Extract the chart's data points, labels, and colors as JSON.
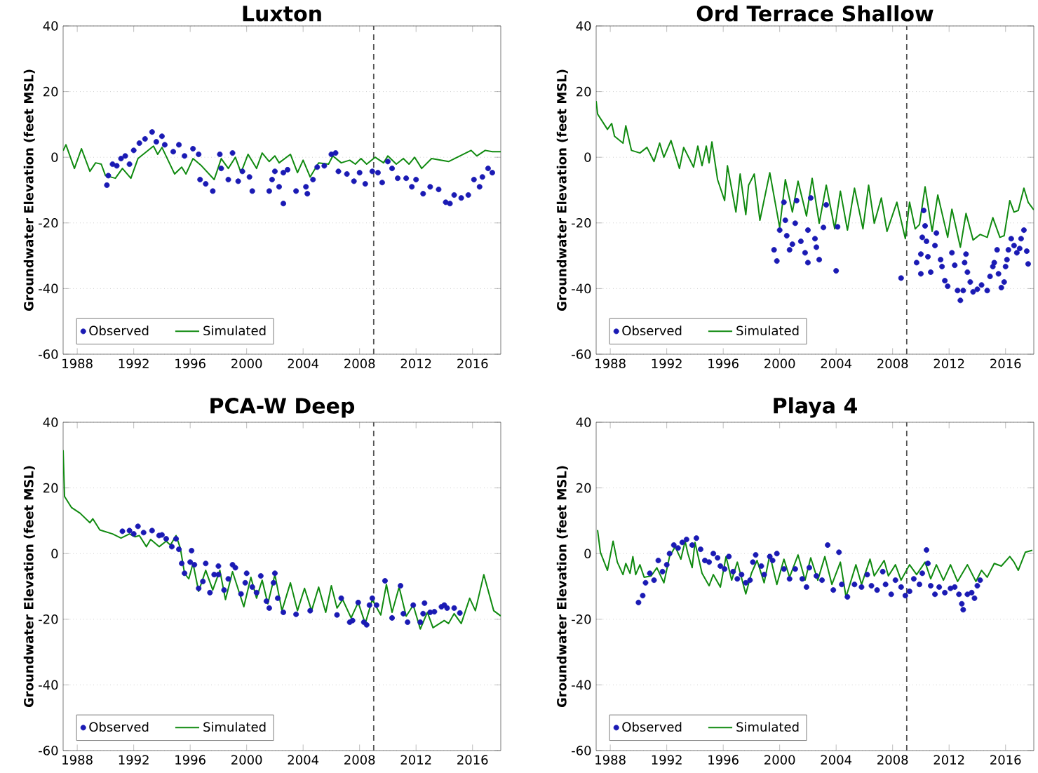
{
  "chart_data": [
    {
      "type": "line",
      "title": "Luxton",
      "ylabel": "Groundwater Elevation (feet MSL)",
      "xlim": [
        1987,
        2018
      ],
      "ylim": [
        -60,
        40
      ],
      "xticks": [
        1988,
        1992,
        1996,
        2000,
        2004,
        2008,
        2012,
        2016
      ],
      "yticks": [
        -60,
        -40,
        -20,
        0,
        20,
        40
      ],
      "grid": "y",
      "legend": "bottom left",
      "ref_lines": [
        {
          "axis": "x",
          "value": 2009,
          "color": "#555555",
          "line_style": "dashed"
        }
      ],
      "series": [
        {
          "name": "Observed",
          "type": "scatter",
          "color": "#1a1ab4",
          "x": [
            1990.1,
            1990.2,
            1990.5,
            1990.8,
            1991.1,
            1991.4,
            1991.7,
            1992.0,
            1992.4,
            1992.8,
            1993.3,
            1993.6,
            1994.0,
            1994.2,
            1994.8,
            1995.2,
            1995.6,
            1996.2,
            1996.6,
            1996.7,
            1997.1,
            1997.6,
            1998.1,
            1998.2,
            1998.7,
            1999.0,
            1999.4,
            1999.7,
            2000.2,
            2000.4,
            2001.6,
            2001.8,
            2002.0,
            2002.3,
            2002.6,
            2002.6,
            2002.9,
            2003.5,
            2004.3,
            2004.2,
            2004.7,
            2005.0,
            2005.5,
            2006.0,
            2006.3,
            2006.5,
            2007.1,
            2007.6,
            2008.0,
            2008.4,
            2008.9,
            2009.3,
            2009.6,
            2010.0,
            2010.3,
            2010.7,
            2011.3,
            2011.7,
            2012.0,
            2012.5,
            2013.0,
            2013.6,
            2014.1,
            2014.4,
            2014.7,
            2015.2,
            2015.7,
            2016.1,
            2016.5,
            2016.7,
            2017.1,
            2017.4
          ],
          "values": [
            -8.5,
            -5.6,
            -2.1,
            -2.6,
            -0.4,
            0.4,
            -2.1,
            2.1,
            4.3,
            5.6,
            7.7,
            4.7,
            6.4,
            3.8,
            1.7,
            3.8,
            0.4,
            2.6,
            0.9,
            -6.8,
            -8.1,
            -10.3,
            0.9,
            -3.4,
            -6.8,
            1.3,
            -7.3,
            -4.3,
            -6.0,
            -10.3,
            -10.3,
            -6.8,
            -4.3,
            -9.0,
            -14.1,
            -4.7,
            -3.8,
            -10.3,
            -11.1,
            -9.0,
            -6.8,
            -3.0,
            -2.6,
            0.9,
            1.3,
            -4.3,
            -5.1,
            -7.3,
            -4.7,
            -8.1,
            -4.3,
            -4.7,
            -7.7,
            -1.3,
            -3.4,
            -6.4,
            -6.4,
            -9.0,
            -6.8,
            -11.1,
            -9.0,
            -9.8,
            -13.7,
            -14.1,
            -11.5,
            -12.4,
            -11.5,
            -6.8,
            -9.0,
            -6.0,
            -3.4,
            -4.7
          ]
        },
        {
          "name": "Simulated",
          "type": "line",
          "color": "#108a10",
          "x": [
            1987.0,
            1987.2,
            1987.8,
            1988.3,
            1988.9,
            1989.3,
            1989.7,
            1990.0,
            1990.7,
            1991.2,
            1991.8,
            1992.3,
            1993.4,
            1993.7,
            1994.0,
            1994.9,
            1995.4,
            1995.7,
            1996.2,
            1996.8,
            1997.7,
            1998.2,
            1998.7,
            1999.2,
            1999.6,
            2000.1,
            2000.7,
            2001.1,
            2001.6,
            2002.0,
            2002.3,
            2003.1,
            2003.6,
            2004.0,
            2004.5,
            2005.1,
            2005.8,
            2006.1,
            2006.7,
            2007.3,
            2007.7,
            2008.1,
            2008.5,
            2009.1,
            2009.7,
            2010.0,
            2010.6,
            2011.1,
            2011.5,
            2011.9,
            2012.4,
            2013.1,
            2014.3,
            2015.1,
            2015.9,
            2016.3,
            2016.9,
            2017.4,
            2018.0
          ],
          "values": [
            2.0,
            3.8,
            -3.4,
            2.6,
            -4.3,
            -1.7,
            -2.1,
            -5.6,
            -6.4,
            -3.4,
            -6.4,
            -0.4,
            3.4,
            0.9,
            3.0,
            -5.1,
            -3.0,
            -5.1,
            -0.4,
            -2.6,
            -6.8,
            -0.4,
            -3.4,
            0.0,
            -4.7,
            0.9,
            -3.4,
            1.3,
            -1.3,
            0.4,
            -1.7,
            0.9,
            -4.7,
            -0.9,
            -6.0,
            -1.7,
            -2.1,
            0.4,
            -1.7,
            -0.9,
            -2.1,
            -0.4,
            -2.1,
            0.0,
            -1.7,
            0.4,
            -2.1,
            -0.4,
            -2.1,
            0.0,
            -3.4,
            -0.4,
            -1.3,
            0.4,
            2.1,
            0.4,
            2.1,
            1.7,
            1.7
          ]
        }
      ]
    },
    {
      "type": "line",
      "title": "Ord Terrace Shallow",
      "ylabel": "Groundwater Elevation (feet MSL)",
      "xlim": [
        1987,
        2018
      ],
      "ylim": [
        -60,
        40
      ],
      "xticks": [
        1988,
        1992,
        1996,
        2000,
        2004,
        2008,
        2012,
        2016
      ],
      "yticks": [
        -60,
        -40,
        -20,
        0,
        20,
        40
      ],
      "grid": "y",
      "legend": "bottom left",
      "ref_lines": [
        {
          "axis": "x",
          "value": 2009,
          "color": "#555555",
          "line_style": "dashed"
        }
      ],
      "series": [
        {
          "name": "Observed",
          "type": "scatter",
          "color": "#1a1ab4",
          "x": [
            1999.6,
            1999.8,
            2000.0,
            2000.3,
            2000.4,
            2000.5,
            2000.7,
            2000.9,
            2001.1,
            2001.2,
            2001.5,
            2001.8,
            2002.0,
            2002.0,
            2002.2,
            2002.5,
            2002.6,
            2002.8,
            2003.1,
            2003.3,
            2004.1,
            2004.0,
            2008.6,
            2009.7,
            2010.0,
            2010.0,
            2010.1,
            2010.2,
            2010.3,
            2010.4,
            2010.5,
            2010.7,
            2011.0,
            2011.1,
            2011.4,
            2011.5,
            2011.7,
            2011.9,
            2012.2,
            2012.4,
            2012.6,
            2012.8,
            2013.0,
            2013.1,
            2013.2,
            2013.3,
            2013.5,
            2013.7,
            2014.0,
            2014.3,
            2014.7,
            2014.9,
            2015.1,
            2015.2,
            2015.4,
            2015.5,
            2015.7,
            2015.9,
            2016.0,
            2016.1,
            2016.2,
            2016.4,
            2016.6,
            2016.8,
            2017.0,
            2017.1,
            2017.3,
            2017.5,
            2017.6
          ],
          "values": [
            -28.2,
            -31.6,
            -22.2,
            -13.7,
            -19.2,
            -23.9,
            -28.2,
            -26.5,
            -20.1,
            -13.2,
            -25.6,
            -29.1,
            -32.1,
            -22.2,
            -12.4,
            -24.8,
            -27.4,
            -31.2,
            -21.4,
            -14.5,
            -21.2,
            -34.6,
            -36.8,
            -32.1,
            -35.5,
            -29.5,
            -24.4,
            -16.2,
            -20.9,
            -25.6,
            -30.3,
            -35.0,
            -26.9,
            -23.1,
            -31.2,
            -33.3,
            -37.6,
            -39.3,
            -29.1,
            -32.9,
            -40.6,
            -43.6,
            -40.6,
            -32.1,
            -29.5,
            -35.0,
            -38.0,
            -41.0,
            -40.2,
            -38.9,
            -40.6,
            -36.3,
            -33.3,
            -32.1,
            -28.2,
            -35.5,
            -39.7,
            -38.0,
            -33.3,
            -31.2,
            -28.2,
            -24.8,
            -26.9,
            -29.1,
            -27.8,
            -24.8,
            -22.2,
            -28.6,
            -32.5
          ]
        },
        {
          "name": "Simulated",
          "type": "line",
          "color": "#108a10",
          "x": [
            1987.0,
            1987.1,
            1987.8,
            1988.1,
            1988.3,
            1988.9,
            1989.1,
            1989.5,
            1990.1,
            1990.6,
            1991.1,
            1991.5,
            1991.8,
            1992.3,
            1992.9,
            1993.2,
            1993.9,
            1994.2,
            1994.5,
            1994.8,
            1995.0,
            1995.2,
            1995.6,
            1996.1,
            1996.3,
            1996.9,
            1997.2,
            1997.6,
            1997.8,
            1998.2,
            1998.6,
            1999.3,
            2000.0,
            2000.4,
            2000.9,
            2001.3,
            2001.9,
            2002.3,
            2002.8,
            2003.3,
            2003.9,
            2004.3,
            2004.8,
            2005.3,
            2005.9,
            2006.3,
            2006.7,
            2007.2,
            2007.6,
            2008.3,
            2008.9,
            2009.2,
            2009.6,
            2009.9,
            2010.3,
            2010.8,
            2011.2,
            2011.9,
            2012.2,
            2012.8,
            2013.2,
            2013.7,
            2014.2,
            2014.7,
            2015.1,
            2015.6,
            2015.9,
            2016.3,
            2016.6,
            2016.9,
            2017.3,
            2017.6,
            2018.0
          ],
          "values": [
            17.1,
            13.2,
            8.5,
            10.3,
            6.4,
            4.3,
            9.6,
            2.1,
            1.3,
            3.0,
            -1.3,
            4.3,
            0.0,
            5.1,
            -3.4,
            3.0,
            -3.0,
            3.4,
            -2.6,
            3.4,
            -1.7,
            4.7,
            -6.8,
            -13.2,
            -2.6,
            -16.7,
            -5.1,
            -17.5,
            -8.5,
            -5.1,
            -19.2,
            -4.7,
            -21.4,
            -6.8,
            -16.7,
            -7.3,
            -17.9,
            -6.4,
            -20.1,
            -8.5,
            -21.8,
            -10.3,
            -22.2,
            -9.4,
            -21.8,
            -8.5,
            -20.1,
            -12.4,
            -22.6,
            -13.7,
            -24.8,
            -13.7,
            -21.8,
            -20.5,
            -9.0,
            -22.6,
            -11.5,
            -24.4,
            -15.8,
            -27.4,
            -17.1,
            -25.2,
            -23.5,
            -24.4,
            -18.4,
            -24.4,
            -23.9,
            -13.2,
            -16.7,
            -16.2,
            -9.4,
            -13.7,
            -16.0
          ]
        }
      ]
    },
    {
      "type": "line",
      "title": "PCA-W Deep",
      "ylabel": "Groundwater Elevation (feet MSL)",
      "xlim": [
        1987,
        2018
      ],
      "ylim": [
        -60,
        40
      ],
      "xticks": [
        1988,
        1992,
        1996,
        2000,
        2004,
        2008,
        2012,
        2016
      ],
      "yticks": [
        -60,
        -40,
        -20,
        0,
        20,
        40
      ],
      "grid": "y",
      "legend": "bottom left",
      "ref_lines": [
        {
          "axis": "x",
          "value": 2009,
          "color": "#555555",
          "line_style": "dashed"
        }
      ],
      "series": [
        {
          "name": "Observed",
          "type": "scatter",
          "color": "#1a1ab4",
          "x": [
            1991.2,
            1991.7,
            1992.0,
            1992.3,
            1992.7,
            1993.3,
            1993.8,
            1994.0,
            1994.3,
            1994.7,
            1995.0,
            1995.2,
            1995.4,
            1995.6,
            1996.0,
            1996.1,
            1996.3,
            1996.6,
            1996.9,
            1997.1,
            1997.4,
            1997.7,
            1998.0,
            1998.0,
            1998.4,
            1998.7,
            1999.0,
            1999.2,
            1999.6,
            1999.9,
            2000.0,
            2000.4,
            2000.7,
            2001.0,
            2001.4,
            2001.6,
            2001.9,
            2002.0,
            2002.2,
            2002.6,
            2003.5,
            2004.5,
            2006.4,
            2006.7,
            2007.3,
            2007.5,
            2007.9,
            2008.3,
            2008.5,
            2008.7,
            2008.9,
            2009.2,
            2009.8,
            2010.3,
            2010.9,
            2011.1,
            2011.4,
            2011.8,
            2012.3,
            2012.5,
            2012.6,
            2013.0,
            2013.3,
            2013.8,
            2014.0,
            2014.2,
            2014.7,
            2015.1
          ],
          "values": [
            6.8,
            7.0,
            6.0,
            8.3,
            6.4,
            7.0,
            5.5,
            5.7,
            4.5,
            2.1,
            4.5,
            1.3,
            -3.0,
            -6.0,
            -2.6,
            0.9,
            -3.4,
            -10.6,
            -8.5,
            -3.0,
            -11.9,
            -6.4,
            -6.4,
            -3.8,
            -11.1,
            -7.7,
            -3.4,
            -4.3,
            -12.3,
            -8.9,
            -6.0,
            -10.2,
            -11.9,
            -6.8,
            -14.5,
            -16.6,
            -8.9,
            -6.0,
            -13.6,
            -17.9,
            -18.5,
            -17.4,
            -18.7,
            -13.6,
            -20.9,
            -20.4,
            -14.9,
            -20.9,
            -21.7,
            -15.7,
            -13.6,
            -15.7,
            -8.3,
            -19.6,
            -9.8,
            -18.3,
            -20.9,
            -15.7,
            -20.9,
            -18.3,
            -15.1,
            -17.9,
            -17.7,
            -16.2,
            -15.7,
            -16.6,
            -16.6,
            -18.1
          ]
        },
        {
          "name": "Simulated",
          "type": "line",
          "color": "#108a10",
          "x": [
            1987.0,
            1987.1,
            1987.6,
            1988.2,
            1988.9,
            1989.1,
            1989.6,
            1990.5,
            1991.1,
            1991.7,
            1992.1,
            1992.4,
            1992.9,
            1993.2,
            1993.8,
            1994.3,
            1994.6,
            1995.0,
            1995.3,
            1995.6,
            1995.9,
            1996.2,
            1996.6,
            1997.1,
            1997.6,
            1998.1,
            1998.5,
            1999.0,
            1999.8,
            2000.3,
            2000.7,
            2001.1,
            2001.5,
            2002.0,
            2002.5,
            2003.1,
            2003.6,
            2004.1,
            2004.6,
            2005.1,
            2005.6,
            2006.0,
            2006.4,
            2006.8,
            2007.4,
            2007.9,
            2008.4,
            2008.9,
            2009.5,
            2009.9,
            2010.3,
            2010.8,
            2011.3,
            2011.8,
            2012.3,
            2012.8,
            2013.2,
            2014.0,
            2014.3,
            2014.7,
            2015.2,
            2015.8,
            2016.2,
            2016.8,
            2017.5,
            2018.0
          ],
          "values": [
            31.5,
            17.4,
            14.0,
            12.3,
            9.4,
            10.6,
            7.2,
            6.0,
            4.7,
            6.0,
            5.1,
            5.5,
            2.1,
            4.3,
            2.1,
            3.8,
            2.6,
            5.5,
            1.7,
            -6.0,
            -7.7,
            -3.0,
            -11.5,
            -5.1,
            -11.1,
            -5.1,
            -14.0,
            -5.5,
            -16.2,
            -7.2,
            -13.6,
            -8.1,
            -15.3,
            -6.4,
            -17.4,
            -8.9,
            -17.4,
            -10.6,
            -17.4,
            -10.2,
            -17.9,
            -9.8,
            -16.6,
            -14.0,
            -19.6,
            -14.9,
            -21.3,
            -14.0,
            -18.7,
            -9.4,
            -17.9,
            -10.2,
            -19.1,
            -15.7,
            -23.0,
            -17.9,
            -22.6,
            -20.4,
            -21.3,
            -18.3,
            -21.3,
            -13.6,
            -17.4,
            -6.4,
            -17.4,
            -19.0
          ]
        }
      ]
    },
    {
      "type": "line",
      "title": "Playa 4",
      "ylabel": "Groundwater Elevation (feet MSL)",
      "xlim": [
        1987,
        2018
      ],
      "ylim": [
        -60,
        40
      ],
      "xticks": [
        1988,
        1992,
        1996,
        2000,
        2004,
        2008,
        2012,
        2016
      ],
      "yticks": [
        -60,
        -40,
        -20,
        0,
        20,
        40
      ],
      "grid": "y",
      "legend": "bottom left",
      "ref_lines": [
        {
          "axis": "x",
          "value": 2009,
          "color": "#555555",
          "line_style": "dashed"
        }
      ],
      "series": [
        {
          "name": "Observed",
          "type": "scatter",
          "color": "#1a1ab4",
          "x": [
            1990.0,
            1990.3,
            1990.5,
            1990.8,
            1991.1,
            1991.4,
            1991.7,
            1992.0,
            1992.2,
            1992.5,
            1992.8,
            1993.1,
            1993.4,
            1993.8,
            1994.1,
            1994.4,
            1994.7,
            1995.0,
            1995.3,
            1995.6,
            1995.8,
            1996.1,
            1996.4,
            1996.7,
            1997.0,
            1997.3,
            1997.6,
            1997.9,
            1998.1,
            1998.3,
            1998.7,
            1998.9,
            1999.3,
            1999.5,
            1999.8,
            2000.3,
            2000.7,
            2001.1,
            2001.6,
            2001.9,
            2002.1,
            2002.6,
            2003.0,
            2003.4,
            2003.8,
            2004.2,
            2004.4,
            2004.8,
            2005.3,
            2005.8,
            2006.2,
            2006.5,
            2006.9,
            2007.3,
            2007.5,
            2007.9,
            2008.2,
            2008.6,
            2008.9,
            2009.2,
            2009.5,
            2009.9,
            2010.1,
            2010.4,
            2010.5,
            2010.7,
            2011.0,
            2011.3,
            2011.7,
            2012.1,
            2012.4,
            2012.7,
            2012.9,
            2013.0,
            2013.3,
            2013.6,
            2013.8,
            2014.0,
            2014.2
          ],
          "values": [
            -14.9,
            -12.8,
            -8.9,
            -6.0,
            -8.1,
            -2.1,
            -5.5,
            -3.4,
            0.0,
            2.6,
            1.7,
            3.4,
            4.3,
            2.6,
            4.7,
            1.3,
            -2.1,
            -2.6,
            0.0,
            -1.3,
            -3.8,
            -4.7,
            -0.9,
            -5.5,
            -7.7,
            -6.4,
            -8.9,
            -8.1,
            -2.6,
            -0.4,
            -3.8,
            -6.4,
            -0.9,
            -2.1,
            0.0,
            -4.7,
            -7.7,
            -4.7,
            -7.7,
            -10.2,
            -4.3,
            -6.8,
            -8.1,
            2.6,
            -11.1,
            0.4,
            -9.4,
            -13.2,
            -9.4,
            -10.2,
            -6.4,
            -9.8,
            -11.1,
            -5.5,
            -9.4,
            -12.4,
            -8.1,
            -10.2,
            -12.8,
            -11.5,
            -7.7,
            -9.4,
            -6.0,
            1.1,
            -3.0,
            -9.8,
            -12.4,
            -10.2,
            -11.9,
            -10.6,
            -10.2,
            -12.4,
            -15.3,
            -17.1,
            -12.4,
            -11.9,
            -13.6,
            -9.8,
            -8.1
          ]
        },
        {
          "name": "Simulated",
          "type": "line",
          "color": "#108a10",
          "x": [
            1987.1,
            1987.3,
            1987.8,
            1988.2,
            1988.5,
            1988.9,
            1989.1,
            1989.4,
            1989.6,
            1989.8,
            1990.1,
            1990.4,
            1990.9,
            1991.3,
            1991.8,
            1992.2,
            1992.6,
            1993.0,
            1993.3,
            1993.5,
            1993.8,
            1994.0,
            1994.5,
            1995.0,
            1995.3,
            1995.8,
            1996.2,
            1996.6,
            1997.0,
            1997.6,
            1998.0,
            1998.4,
            1998.9,
            1999.3,
            1999.8,
            2000.3,
            2000.7,
            2001.3,
            2001.8,
            2002.2,
            2002.7,
            2003.2,
            2003.7,
            2004.3,
            2004.7,
            2005.4,
            2005.8,
            2006.4,
            2006.7,
            2007.4,
            2007.7,
            2008.2,
            2008.6,
            2009.2,
            2009.7,
            2010.3,
            2010.7,
            2011.1,
            2011.6,
            2012.1,
            2012.6,
            2013.3,
            2013.9,
            2014.3,
            2014.7,
            2015.2,
            2015.7,
            2016.3,
            2016.6,
            2016.9,
            2017.4,
            2017.9
          ],
          "values": [
            7.2,
            0.4,
            -5.1,
            3.8,
            -2.6,
            -6.4,
            -3.0,
            -6.0,
            -0.9,
            -6.4,
            -3.4,
            -7.2,
            -6.8,
            -4.3,
            -8.9,
            -0.9,
            2.1,
            -1.7,
            3.8,
            0.0,
            -4.3,
            3.4,
            -6.0,
            -9.8,
            -6.4,
            -10.2,
            -0.9,
            -8.1,
            -2.6,
            -12.3,
            -6.0,
            -2.1,
            -8.9,
            -0.4,
            -9.4,
            -1.7,
            -7.2,
            -0.4,
            -8.1,
            -1.3,
            -8.1,
            -0.9,
            -9.4,
            -2.6,
            -13.2,
            -3.4,
            -9.4,
            -1.7,
            -6.8,
            -2.1,
            -6.8,
            -3.4,
            -8.1,
            -3.4,
            -6.4,
            -2.6,
            -7.7,
            -3.4,
            -8.1,
            -3.4,
            -8.5,
            -3.4,
            -8.5,
            -5.1,
            -7.2,
            -3.0,
            -3.8,
            -0.9,
            -2.6,
            -5.1,
            0.4,
            1.0
          ]
        }
      ]
    }
  ]
}
